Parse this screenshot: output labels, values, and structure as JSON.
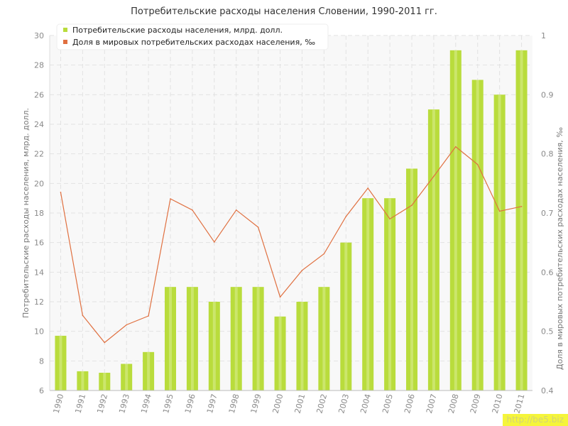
{
  "chart_data": {
    "type": "bar",
    "title": "Потребительские расходы населения Словении, 1990-2011 гг.",
    "categories": [
      "1990",
      "1991",
      "1992",
      "1993",
      "1994",
      "1995",
      "1996",
      "1997",
      "1998",
      "1999",
      "2000",
      "2001",
      "2002",
      "2003",
      "2004",
      "2005",
      "2006",
      "2007",
      "2008",
      "2009",
      "2010",
      "2011"
    ],
    "series": [
      {
        "name": "Потребительские расходы населения, млрд. долл.",
        "type": "bar",
        "axis": "left",
        "color": "#b9dc3c",
        "values": [
          9.7,
          7.3,
          7.2,
          7.8,
          8.6,
          13,
          13,
          12,
          13,
          13,
          11,
          12,
          13,
          16,
          19,
          19,
          21,
          25,
          29,
          27,
          26,
          29
        ]
      },
      {
        "name": "Доля в мировых потребительских расходах населения, ‰",
        "type": "line",
        "axis": "right",
        "color": "#e07040",
        "values": [
          0.735,
          0.527,
          0.481,
          0.511,
          0.526,
          0.724,
          0.705,
          0.651,
          0.705,
          0.676,
          0.558,
          0.603,
          0.631,
          0.694,
          0.742,
          0.69,
          0.713,
          0.762,
          0.812,
          0.782,
          0.703,
          0.711
        ]
      }
    ],
    "ylabel": "Потребительские расходы населения, млрд. долл.",
    "y2label": "Доля в мировых потребительских расходах населения, ‰",
    "xlabel": "",
    "ylim": [
      6,
      30
    ],
    "yticks": [
      "6",
      "8",
      "10",
      "12",
      "14",
      "16",
      "18",
      "20",
      "22",
      "24",
      "26",
      "28",
      "30"
    ],
    "y2lim": [
      0.4,
      1
    ],
    "y2ticks": [
      "0.4",
      "0.5",
      "0.6",
      "0.7",
      "0.8",
      "0.9",
      "1"
    ],
    "grid": true,
    "legend_position": "top-left",
    "watermark": "http://be5.biz"
  }
}
